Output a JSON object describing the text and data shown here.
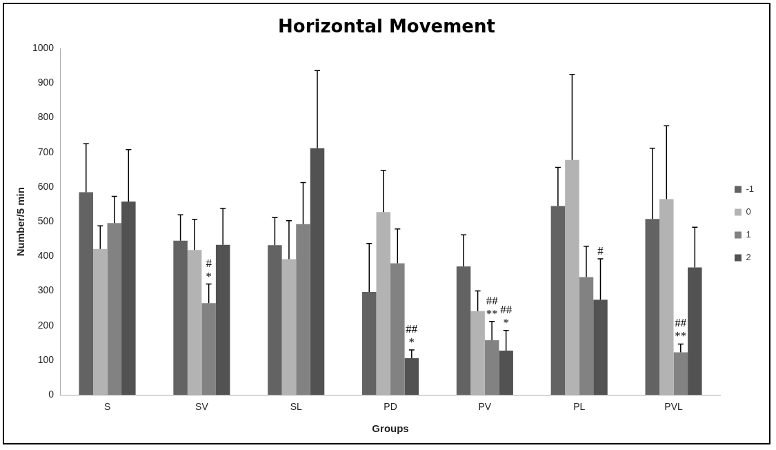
{
  "chart_data": {
    "type": "bar",
    "title": "Horizontal Movement",
    "xlabel": "Groups",
    "ylabel": "Number/5 min",
    "categories": [
      "S",
      "SV",
      "SL",
      "PD",
      "PV",
      "PL",
      "PVL"
    ],
    "series": [
      {
        "name": "-1",
        "color": "#636363",
        "values": [
          585,
          445,
          432,
          297,
          371,
          545,
          508
        ],
        "errors": [
          [
            585,
            725
          ],
          [
            445,
            520
          ],
          [
            432,
            512
          ],
          [
            297,
            437
          ],
          [
            371,
            462
          ],
          [
            545,
            657
          ],
          [
            508,
            712
          ]
        ]
      },
      {
        "name": "0",
        "color": "#b3b3b3",
        "values": [
          421,
          418,
          392,
          528,
          242,
          678,
          565
        ],
        "errors": [
          [
            421,
            488
          ],
          [
            418,
            507
          ],
          [
            392,
            503
          ],
          [
            528,
            648
          ],
          [
            242,
            300
          ],
          [
            678,
            925
          ],
          [
            565,
            777
          ]
        ]
      },
      {
        "name": "1",
        "color": "#828282",
        "values": [
          496,
          265,
          493,
          380,
          158,
          340,
          123
        ],
        "errors": [
          [
            496,
            573
          ],
          [
            265,
            320
          ],
          [
            493,
            613
          ],
          [
            380,
            479
          ],
          [
            158,
            212
          ],
          [
            340,
            429
          ],
          [
            123,
            147
          ]
        ]
      },
      {
        "name": "2",
        "color": "#525252",
        "values": [
          558,
          433,
          712,
          106,
          128,
          275,
          368
        ],
        "errors": [
          [
            558,
            708
          ],
          [
            433,
            538
          ],
          [
            712,
            936
          ],
          [
            106,
            130
          ],
          [
            128,
            186
          ],
          [
            275,
            393
          ],
          [
            368,
            484
          ]
        ]
      }
    ],
    "annotations": [
      {
        "text": "*",
        "x": "SV",
        "y": 320
      },
      {
        "text": "#",
        "x": "SV",
        "y": 320
      },
      {
        "text": "*",
        "x": "PD",
        "y": 130
      },
      {
        "text": "##",
        "x": "PD",
        "y": 130
      },
      {
        "text": "**",
        "x": "PV",
        "y": 212
      },
      {
        "text": "##",
        "x": "PV",
        "y": 212
      },
      {
        "text": "*",
        "x": "PV",
        "y": 186
      },
      {
        "text": "##",
        "x": "PV",
        "y": 186
      },
      {
        "text": "#",
        "x": "PL",
        "y": 393
      },
      {
        "text": "**",
        "x": "PVL",
        "y": 147
      },
      {
        "text": "##",
        "x": "PVL",
        "y": 147
      }
    ],
    "ylim": [
      0,
      1000
    ],
    "yticks": [
      0,
      100,
      200,
      300,
      400,
      500,
      600,
      700,
      800,
      900,
      1000
    ],
    "grid": false,
    "legend": "right"
  }
}
